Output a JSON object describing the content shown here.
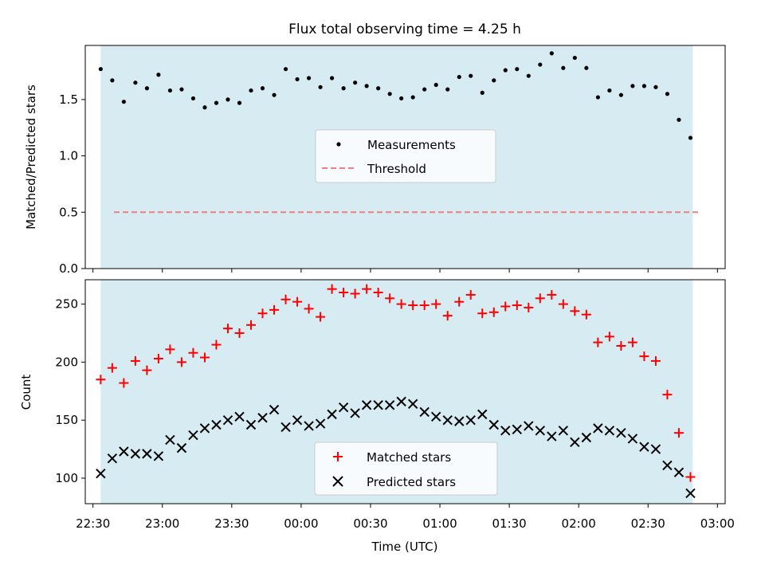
{
  "figure": {
    "title": "Flux total observing time = 4.25 h"
  },
  "chart_data": [
    {
      "type": "scatter",
      "ylabel": "Matched/Predicted stars",
      "ylim": [
        0,
        1.98
      ],
      "yticks": [
        0.0,
        0.5,
        1.0,
        1.5
      ],
      "ytick_labels": [
        "0.0",
        "0.5",
        "1.0",
        "1.5"
      ],
      "grid": false,
      "legend_position": "center",
      "shaded_region": {
        "x_start": 22.5556,
        "x_end": 2.8222,
        "color": "#add8e6"
      },
      "threshold": {
        "name": "Threshold",
        "value": 0.5,
        "color": "#f08080",
        "style": "dashed"
      },
      "series": [
        {
          "name": "Measurements",
          "marker": "dot",
          "color": "#000000",
          "x": [
            22.5556,
            22.6389,
            22.7222,
            22.8056,
            22.8889,
            22.9722,
            23.0556,
            23.1389,
            23.2222,
            23.3056,
            23.3889,
            23.4722,
            23.5556,
            23.6389,
            23.7222,
            23.8056,
            23.8889,
            23.9722,
            24.0556,
            24.1389,
            24.2222,
            24.3056,
            24.3889,
            24.4722,
            24.5556,
            24.6389,
            24.7222,
            24.8056,
            24.8889,
            24.9722,
            25.0556,
            25.1389,
            25.2222,
            25.3056,
            25.3889,
            25.4722,
            25.5556,
            25.6389,
            25.7222,
            25.8056,
            25.8889,
            25.9722,
            26.0556,
            26.1389,
            26.2222,
            26.3056,
            26.3889,
            26.4722,
            26.5556,
            26.6389,
            26.7222,
            26.8056
          ],
          "y": [
            1.77,
            1.67,
            1.48,
            1.65,
            1.6,
            1.72,
            1.58,
            1.59,
            1.51,
            1.43,
            1.47,
            1.5,
            1.47,
            1.58,
            1.6,
            1.54,
            1.77,
            1.68,
            1.69,
            1.61,
            1.69,
            1.6,
            1.65,
            1.62,
            1.6,
            1.55,
            1.51,
            1.52,
            1.59,
            1.63,
            1.59,
            1.7,
            1.71,
            1.56,
            1.67,
            1.76,
            1.77,
            1.71,
            1.81,
            1.91,
            1.78,
            1.87,
            1.78,
            1.52,
            1.58,
            1.54,
            1.62,
            1.62,
            1.61,
            1.55,
            1.32,
            1.16
          ]
        }
      ]
    },
    {
      "type": "scatter",
      "ylabel": "Count",
      "xlabel": "Time (UTC)",
      "ylim": [
        78,
        271
      ],
      "yticks": [
        100,
        150,
        200,
        250
      ],
      "ytick_labels": [
        "100",
        "150",
        "200",
        "250"
      ],
      "xlim": [
        22.4444,
        27.0556
      ],
      "xticks": [
        22.5,
        23.0,
        23.5,
        24.0,
        24.5,
        25.0,
        25.5,
        26.0,
        26.5,
        27.0
      ],
      "xtick_labels": [
        "22:30",
        "23:00",
        "23:30",
        "00:00",
        "00:30",
        "01:00",
        "01:30",
        "02:00",
        "02:30",
        "03:00"
      ],
      "grid": false,
      "legend_position": "lower center",
      "shaded_region": {
        "x_start": 22.5556,
        "x_end": 26.8222,
        "color": "#add8e6"
      },
      "x": [
        22.5556,
        22.6389,
        22.7222,
        22.8056,
        22.8889,
        22.9722,
        23.0556,
        23.1389,
        23.2222,
        23.3056,
        23.3889,
        23.4722,
        23.5556,
        23.6389,
        23.7222,
        23.8056,
        23.8889,
        23.9722,
        24.0556,
        24.1389,
        24.2222,
        24.3056,
        24.3889,
        24.4722,
        24.5556,
        24.6389,
        24.7222,
        24.8056,
        24.8889,
        24.9722,
        25.0556,
        25.1389,
        25.2222,
        25.3056,
        25.3889,
        25.4722,
        25.5556,
        25.6389,
        25.7222,
        25.8056,
        25.8889,
        25.9722,
        26.0556,
        26.1389,
        26.2222,
        26.3056,
        26.3889,
        26.4722,
        26.5556,
        26.6389,
        26.7222,
        26.8056
      ],
      "series": [
        {
          "name": "Matched stars",
          "marker": "plus",
          "color": "#ff0000",
          "y": [
            185,
            195,
            182,
            201,
            193,
            203,
            211,
            200,
            208,
            204,
            215,
            229,
            225,
            232,
            242,
            245,
            254,
            252,
            246,
            239,
            263,
            260,
            259,
            263,
            260,
            255,
            250,
            249,
            249,
            250,
            240,
            252,
            258,
            242,
            243,
            248,
            249,
            247,
            255,
            258,
            250,
            244,
            241,
            217,
            222,
            214,
            217,
            205,
            201,
            172,
            139,
            101
          ]
        },
        {
          "name": "Predicted stars",
          "marker": "x",
          "color": "#000000",
          "y": [
            104,
            117,
            123,
            121,
            121,
            119,
            133,
            126,
            137,
            143,
            146,
            150,
            153,
            146,
            152,
            159,
            144,
            150,
            145,
            147,
            155,
            161,
            156,
            163,
            163,
            163,
            166,
            164,
            157,
            153,
            150,
            149,
            150,
            155,
            146,
            141,
            142,
            145,
            141,
            136,
            141,
            131,
            135,
            143,
            141,
            139,
            134,
            127,
            125,
            111,
            105,
            87
          ]
        }
      ]
    }
  ]
}
